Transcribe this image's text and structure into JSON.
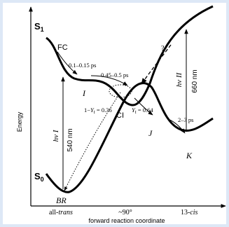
{
  "diagram": {
    "y_axis_label": "Energy",
    "x_axis_label": "forward reaction coordinate",
    "x_ticks": [
      "all-",
      "trans",
      "~90°",
      "13-",
      "cis"
    ],
    "states": {
      "s1": "S",
      "s1_sub": "1",
      "s0": "S",
      "s0_sub": "0",
      "fc": "FC",
      "i": "I",
      "ci": "CI",
      "j": "J",
      "k": "K",
      "br": "BR"
    },
    "timescales": {
      "fc_to_i": "0.1–0.15 ps",
      "i_to_ci": "0.45–0.5 ps",
      "j_to_k": "2–3 ps",
      "unknown": "?"
    },
    "yields": {
      "left": "1−",
      "left_sym": "Y",
      "left_sub": "I",
      "left_val": " = 0.36",
      "right_sym": "Y",
      "right_sub": "I",
      "right_val": " = 0.64"
    },
    "transitions": {
      "pump1_sym": "hν I",
      "pump1_nm": "540 nm",
      "pump2_sym": "hν II",
      "pump2_nm": "660 nm"
    }
  }
}
